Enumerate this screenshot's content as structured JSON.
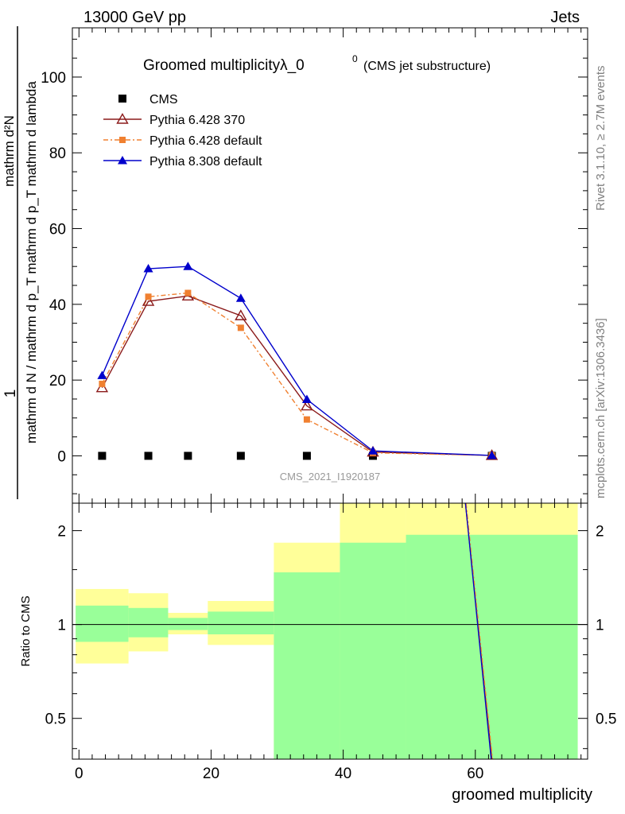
{
  "header": {
    "energy_label": "13000 GeV pp",
    "category_label": "Jets"
  },
  "side": {
    "rivet_label": "Rivet 3.1.10, ≥ 2.7M events",
    "site_label": "mcplots.cern.ch [arXiv:1306.3436]"
  },
  "analysis_id": "CMS_2021_I1920187",
  "chart_data": [
    {
      "type": "line",
      "title": "Groomed multiplicityλ_0",
      "title_superscript": "0",
      "subtitle": "(CMS jet substructure)",
      "ylabel_numerator": "mathrm d²N",
      "ylabel_denominator": "mathrm d N / mathrm d p_T mathrm d p_T mathrm d lambda",
      "ylabel_one": "1",
      "xlim": [
        -1,
        77
      ],
      "ylim": [
        -12.5,
        113
      ],
      "yticks": [
        0,
        20,
        40,
        60,
        80,
        100
      ],
      "x": [
        3.5,
        10.5,
        16.5,
        24.5,
        34.5,
        44.5,
        62.5
      ],
      "series": [
        {
          "name": "CMS",
          "color": "#000000",
          "marker": "square",
          "values": [
            0,
            0,
            0,
            0,
            0,
            0,
            0
          ]
        },
        {
          "name": "Pythia 6.428 370",
          "color": "#8b1a1a",
          "marker": "open-triangle",
          "line": "solid",
          "values": [
            18.0,
            40.8,
            42.2,
            37.0,
            13.2,
            1.0,
            0.1
          ]
        },
        {
          "name": "Pythia 6.428 default",
          "color": "#f08030",
          "marker": "small-square",
          "line": "dashdot",
          "values": [
            19.0,
            42.0,
            43.0,
            33.8,
            9.6,
            0.8,
            0.1
          ]
        },
        {
          "name": "Pythia 8.308 default",
          "color": "#0000cc",
          "marker": "filled-triangle",
          "line": "solid",
          "values": [
            21.2,
            49.4,
            50.0,
            41.6,
            14.9,
            1.3,
            0.1
          ]
        }
      ]
    },
    {
      "type": "line",
      "ylabel": "Ratio to CMS",
      "xlabel": "groomed multiplicity",
      "log_scale_y": true,
      "xticks": [
        0,
        20,
        40,
        60
      ],
      "yticks": [
        "0.5",
        "1",
        "2"
      ],
      "ylim": [
        0.37,
        2.45
      ],
      "bins": [
        [
          -0.5,
          7.5
        ],
        [
          7.5,
          13.5
        ],
        [
          13.5,
          19.5
        ],
        [
          19.5,
          29.5
        ],
        [
          29.5,
          39.5
        ],
        [
          39.5,
          49.5
        ],
        [
          49.5,
          75.5
        ]
      ],
      "band_inner": [
        [
          0.88,
          1.15
        ],
        [
          0.91,
          1.13
        ],
        [
          0.96,
          1.05
        ],
        [
          0.93,
          1.1
        ],
        [
          0.35,
          1.47
        ],
        [
          0.35,
          1.83
        ],
        [
          0.35,
          1.94
        ]
      ],
      "band_outer": [
        [
          0.75,
          1.3
        ],
        [
          0.82,
          1.26
        ],
        [
          0.93,
          1.09
        ],
        [
          0.86,
          1.19
        ],
        [
          0.35,
          1.83
        ],
        [
          0.35,
          2.45
        ],
        [
          0.35,
          2.45
        ]
      ],
      "band_colors": {
        "inner": "#99ff99",
        "outer": "#ffff99"
      },
      "ratio_lines": [
        {
          "name": "Pythia 6.428 370",
          "color": "#8b1a1a",
          "x": [
            58.5,
            62.5
          ],
          "values": [
            2.45,
            0.37
          ]
        },
        {
          "name": "Pythia 6.428 default",
          "color": "#f08030",
          "x": [
            58.6,
            62.6
          ],
          "values": [
            2.45,
            0.37
          ]
        },
        {
          "name": "Pythia 8.308 default",
          "color": "#0000cc",
          "x": [
            58.5,
            62.4
          ],
          "values": [
            2.45,
            0.37
          ]
        }
      ]
    }
  ]
}
